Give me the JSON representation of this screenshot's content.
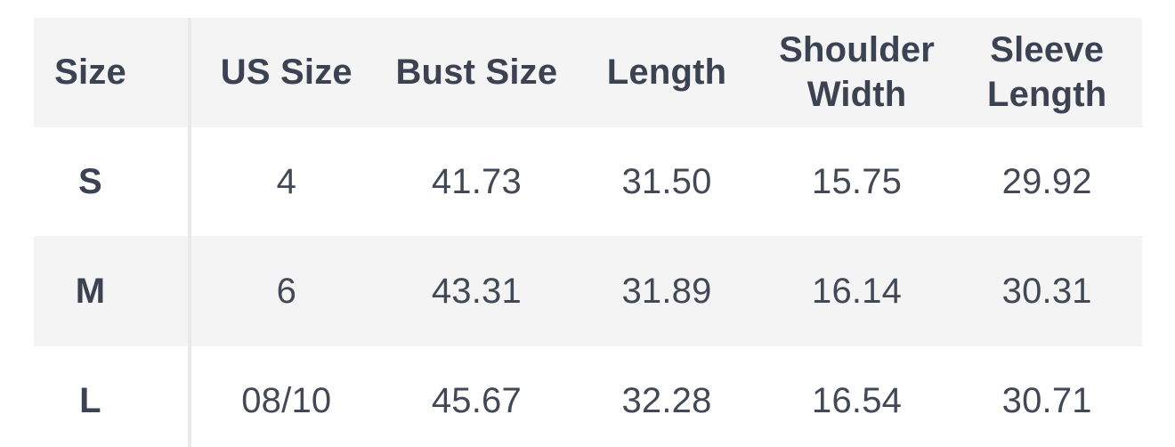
{
  "colors": {
    "background": "#ffffff",
    "stripe_gray": "#f4f4f4",
    "divider_gray": "#e9e9e9",
    "header_text": "#3b4252",
    "cell_text": "#414856"
  },
  "chart_data": {
    "type": "table",
    "title": "",
    "columns": [
      "Size",
      "US Size",
      "Bust Size",
      "Length",
      "Shoulder Width",
      "Sleeve Length"
    ],
    "rows": [
      [
        "S",
        "4",
        "41.73",
        "31.50",
        "15.75",
        "29.92"
      ],
      [
        "M",
        "6",
        "43.31",
        "31.89",
        "16.14",
        "30.31"
      ],
      [
        "L",
        "08/10",
        "45.67",
        "32.28",
        "16.54",
        "30.71"
      ]
    ],
    "layout_hints": {
      "zebra_striping": "header and even body rows gray",
      "alignment": "center",
      "first_column_divider": true
    }
  },
  "table": {
    "header_labels": [
      "Size",
      "US Size",
      "Bust Size",
      "Length",
      "Shoulder\nWidth",
      "Sleeve\nLength"
    ],
    "rows": [
      {
        "size": "S",
        "us_size": "4",
        "bust_size": "41.73",
        "length": "31.50",
        "shoulder_width": "15.75",
        "sleeve_length": "29.92"
      },
      {
        "size": "M",
        "us_size": "6",
        "bust_size": "43.31",
        "length": "31.89",
        "shoulder_width": "16.14",
        "sleeve_length": "30.31"
      },
      {
        "size": "L",
        "us_size": "08/10",
        "bust_size": "45.67",
        "length": "32.28",
        "shoulder_width": "16.54",
        "sleeve_length": "30.71"
      }
    ],
    "row_keys": [
      "size",
      "us_size",
      "bust_size",
      "length",
      "shoulder_width",
      "sleeve_length"
    ]
  }
}
